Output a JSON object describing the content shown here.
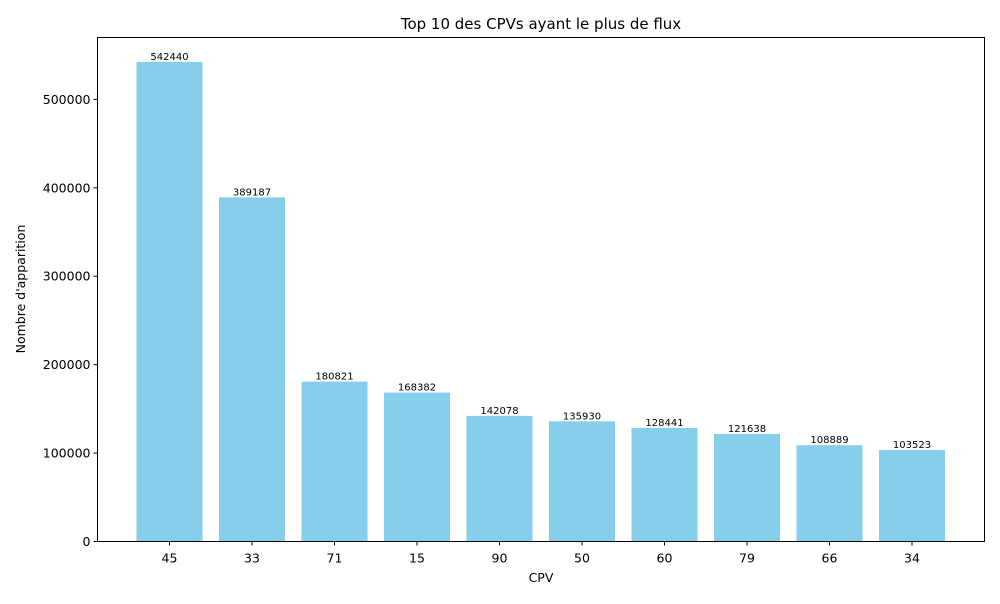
{
  "chart_data": {
    "type": "bar",
    "title": "Top 10 des CPVs ayant le plus de flux",
    "xlabel": "CPV",
    "ylabel": "Nombre d'apparition",
    "categories": [
      "45",
      "33",
      "71",
      "15",
      "90",
      "50",
      "60",
      "79",
      "66",
      "34"
    ],
    "values": [
      542440,
      389187,
      180821,
      168382,
      142078,
      135930,
      128441,
      121638,
      108889,
      103523
    ],
    "data_labels": [
      "542440",
      "389187",
      "180821",
      "168382",
      "142078",
      "135930",
      "128441",
      "121638",
      "108889",
      "103523"
    ],
    "ylim": [
      0,
      570000
    ],
    "yticks": [
      0,
      100000,
      200000,
      300000,
      400000,
      500000
    ],
    "ytick_labels": [
      "0",
      "100000",
      "200000",
      "300000",
      "400000",
      "500000"
    ],
    "bar_color": "#87ceeb",
    "grid": false,
    "legend": "none"
  }
}
